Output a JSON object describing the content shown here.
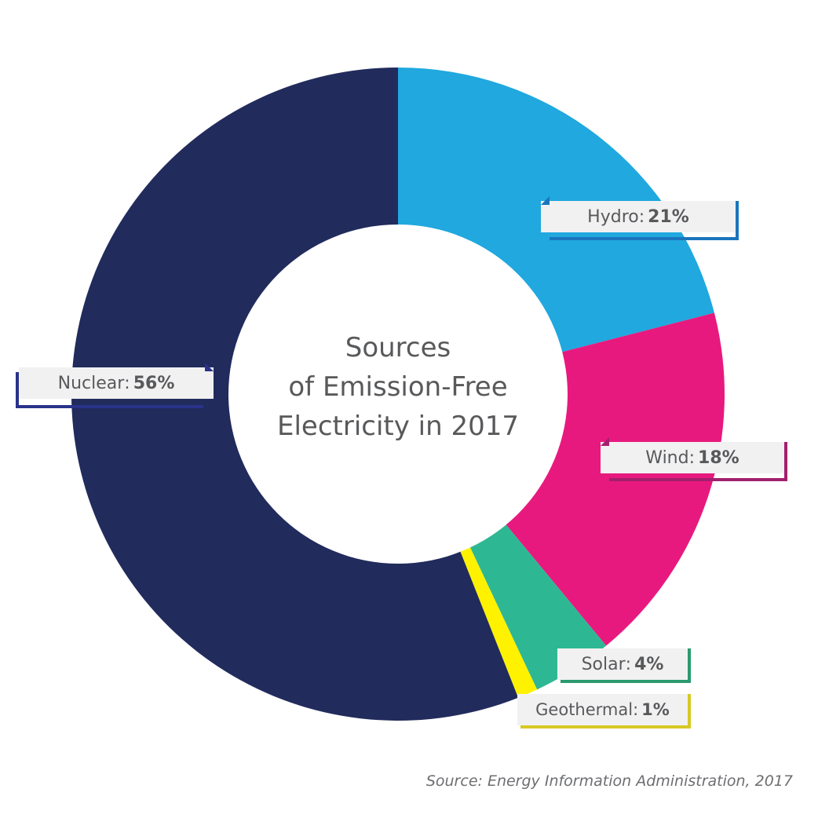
{
  "chart_data": {
    "type": "pie",
    "title_lines": [
      "Sources",
      "of Emission-Free",
      "Electricity in 2017"
    ],
    "slices": [
      {
        "name": "Hydro",
        "value": 21,
        "value_label": "21%",
        "color": "#20a8df",
        "accent": "#1a75bc"
      },
      {
        "name": "Wind",
        "value": 18,
        "value_label": "18%",
        "color": "#e8197e",
        "accent": "#a3206e"
      },
      {
        "name": "Solar",
        "value": 4,
        "value_label": "4%",
        "color": "#2db893",
        "accent": "#2a9a6e"
      },
      {
        "name": "Geothermal",
        "value": 1,
        "value_label": "1%",
        "color": "#fff200",
        "accent": "#d7c824"
      },
      {
        "name": "Nuclear",
        "value": 56,
        "value_label": "56%",
        "color": "#212b5c",
        "accent": "#29338a"
      }
    ],
    "donut": true,
    "start": "top",
    "direction": "clockwise"
  },
  "source_note": "Source: Energy Information Administration, 2017"
}
